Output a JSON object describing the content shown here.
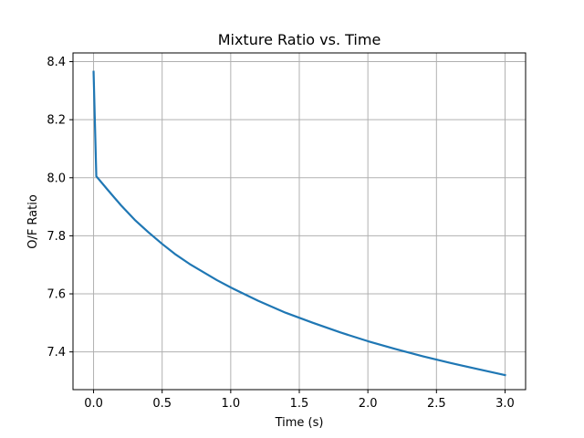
{
  "chart_data": {
    "type": "line",
    "title": "Mixture Ratio vs. Time",
    "xlabel": "Time (s)",
    "ylabel": "O/F Ratio",
    "xlim": [
      -0.15,
      3.15
    ],
    "ylim": [
      7.27,
      8.43
    ],
    "xticks": [
      0.0,
      0.5,
      1.0,
      1.5,
      2.0,
      2.5,
      3.0
    ],
    "xtick_labels": [
      "0.0",
      "0.5",
      "1.0",
      "1.5",
      "2.0",
      "2.5",
      "3.0"
    ],
    "yticks": [
      7.4,
      7.6,
      7.8,
      8.0,
      8.2,
      8.4
    ],
    "ytick_labels": [
      "7.4",
      "7.6",
      "7.8",
      "8.0",
      "8.2",
      "8.4"
    ],
    "grid": true,
    "series": [
      {
        "color": "#1f77b4",
        "x": [
          0.0,
          0.02,
          0.1,
          0.2,
          0.3,
          0.4,
          0.5,
          0.6,
          0.7,
          0.8,
          0.9,
          1.0,
          1.2,
          1.4,
          1.6,
          1.8,
          2.0,
          2.2,
          2.4,
          2.6,
          2.8,
          3.0
        ],
        "y": [
          8.365,
          8.005,
          7.96,
          7.905,
          7.855,
          7.812,
          7.772,
          7.735,
          7.703,
          7.675,
          7.647,
          7.622,
          7.576,
          7.535,
          7.5,
          7.467,
          7.437,
          7.41,
          7.385,
          7.362,
          7.341,
          7.32
        ]
      }
    ]
  }
}
